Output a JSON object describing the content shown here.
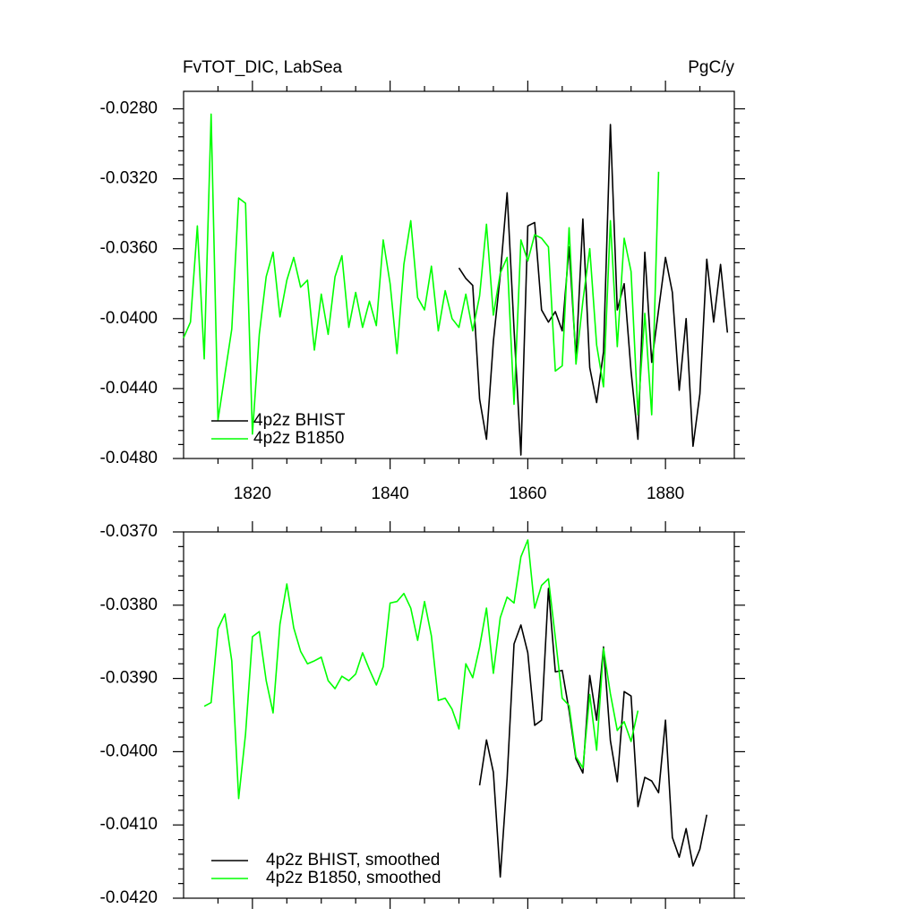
{
  "chart_data": [
    {
      "type": "line",
      "title": "FvTOT_DIC, LabSea",
      "units": "PgC/y",
      "xlim": [
        1810,
        1890
      ],
      "xticks": [
        1820,
        1840,
        1860,
        1880
      ],
      "xtick_labels": true,
      "ylim": [
        -0.048,
        -0.027
      ],
      "yticks": [
        {
          "value": -0.028,
          "label": "-0.0280"
        },
        {
          "value": -0.032,
          "label": "-0.0320"
        },
        {
          "value": -0.036,
          "label": "-0.0360"
        },
        {
          "value": -0.04,
          "label": "-0.0400"
        },
        {
          "value": -0.044,
          "label": "-0.0440"
        },
        {
          "value": -0.048,
          "label": "-0.0480"
        }
      ],
      "legend": "lower left",
      "series": [
        {
          "name": "4p2z BHIST",
          "color": "#000000",
          "x": [
            1850,
            1851,
            1852,
            1853,
            1854,
            1855,
            1856,
            1857,
            1858,
            1859,
            1860,
            1861,
            1862,
            1863,
            1864,
            1865,
            1866,
            1867,
            1868,
            1869,
            1870,
            1871,
            1872,
            1873,
            1874,
            1875,
            1876,
            1877,
            1878,
            1879,
            1880,
            1881,
            1882,
            1883,
            1884,
            1885,
            1886,
            1887,
            1888,
            1889
          ],
          "values": [
            -0.0371,
            -0.0377,
            -0.0381,
            -0.0446,
            -0.0469,
            -0.0413,
            -0.0375,
            -0.0328,
            -0.0406,
            -0.0478,
            -0.0347,
            -0.0345,
            -0.0395,
            -0.0402,
            -0.0396,
            -0.0407,
            -0.0359,
            -0.0423,
            -0.0343,
            -0.0428,
            -0.0448,
            -0.0419,
            -0.0289,
            -0.0395,
            -0.038,
            -0.043,
            -0.0469,
            -0.0362,
            -0.0425,
            -0.0395,
            -0.0365,
            -0.0385,
            -0.0441,
            -0.04,
            -0.0473,
            -0.0443,
            -0.0366,
            -0.0402,
            -0.0369,
            -0.0408
          ]
        },
        {
          "name": "4p2z B1850",
          "color": "#00ff00",
          "x": [
            1810,
            1811,
            1812,
            1813,
            1814,
            1815,
            1816,
            1817,
            1818,
            1819,
            1820,
            1821,
            1822,
            1823,
            1824,
            1825,
            1826,
            1827,
            1828,
            1829,
            1830,
            1831,
            1832,
            1833,
            1834,
            1835,
            1836,
            1837,
            1838,
            1839,
            1840,
            1841,
            1842,
            1843,
            1844,
            1845,
            1846,
            1847,
            1848,
            1849,
            1850,
            1851,
            1852,
            1853,
            1854,
            1855,
            1856,
            1857,
            1858,
            1859,
            1860,
            1861,
            1862,
            1863,
            1864,
            1865,
            1866,
            1867,
            1868,
            1869,
            1870,
            1871,
            1872,
            1873,
            1874,
            1875,
            1876,
            1877,
            1878,
            1879
          ],
          "values": [
            -0.0411,
            -0.0402,
            -0.0347,
            -0.0423,
            -0.0283,
            -0.0458,
            -0.0432,
            -0.0406,
            -0.0331,
            -0.0334,
            -0.0466,
            -0.0409,
            -0.0376,
            -0.0362,
            -0.0399,
            -0.0378,
            -0.0365,
            -0.0382,
            -0.0378,
            -0.0418,
            -0.0386,
            -0.0409,
            -0.0376,
            -0.0364,
            -0.0405,
            -0.0385,
            -0.0405,
            -0.039,
            -0.0404,
            -0.0355,
            -0.038,
            -0.042,
            -0.0369,
            -0.0344,
            -0.0388,
            -0.0395,
            -0.037,
            -0.0407,
            -0.0384,
            -0.04,
            -0.0405,
            -0.0386,
            -0.0407,
            -0.0387,
            -0.0346,
            -0.0398,
            -0.0374,
            -0.0365,
            -0.0449,
            -0.0355,
            -0.0367,
            -0.0352,
            -0.0354,
            -0.0359,
            -0.043,
            -0.0427,
            -0.0348,
            -0.0426,
            -0.039,
            -0.036,
            -0.0415,
            -0.0439,
            -0.0344,
            -0.0416,
            -0.0354,
            -0.0373,
            -0.0455,
            -0.0397,
            -0.0455,
            -0.0316
          ]
        }
      ]
    },
    {
      "type": "line",
      "xlim": [
        1810,
        1890
      ],
      "xticks": [
        1820,
        1840,
        1860,
        1880
      ],
      "xtick_labels": false,
      "ylim": [
        -0.042,
        -0.037
      ],
      "yticks": [
        {
          "value": -0.037,
          "label": "-0.0370"
        },
        {
          "value": -0.038,
          "label": "-0.0380"
        },
        {
          "value": -0.039,
          "label": "-0.0390"
        },
        {
          "value": -0.04,
          "label": "-0.0400"
        },
        {
          "value": -0.041,
          "label": "-0.0410"
        },
        {
          "value": -0.042,
          "label": "-0.0420"
        }
      ],
      "legend": "lower left",
      "series": [
        {
          "name": "4p2z BHIST, smoothed",
          "color": "#000000",
          "x": [
            1853,
            1854,
            1855,
            1856,
            1857,
            1858,
            1859,
            1860,
            1861,
            1862,
            1863,
            1864,
            1865,
            1866,
            1867,
            1868,
            1869,
            1870,
            1871,
            1872,
            1873,
            1874,
            1875,
            1876,
            1877,
            1878,
            1879,
            1880,
            1881,
            1882,
            1883,
            1884,
            1885,
            1886
          ],
          "values": [
            -0.04046,
            -0.03984,
            -0.04028,
            -0.04171,
            -0.04036,
            -0.03853,
            -0.03827,
            -0.03865,
            -0.03964,
            -0.03957,
            -0.03777,
            -0.03891,
            -0.03889,
            -0.03944,
            -0.0401,
            -0.04029,
            -0.03896,
            -0.03957,
            -0.03857,
            -0.03985,
            -0.04041,
            -0.03918,
            -0.03924,
            -0.04075,
            -0.04035,
            -0.0404,
            -0.04056,
            -0.03957,
            -0.04117,
            -0.04144,
            -0.04105,
            -0.04156,
            -0.04133,
            -0.04086
          ]
        },
        {
          "name": "4p2z B1850, smoothed",
          "color": "#00ff00",
          "x": [
            1813,
            1814,
            1815,
            1816,
            1817,
            1818,
            1819,
            1820,
            1821,
            1822,
            1823,
            1824,
            1825,
            1826,
            1827,
            1828,
            1829,
            1830,
            1831,
            1832,
            1833,
            1834,
            1835,
            1836,
            1837,
            1838,
            1839,
            1840,
            1841,
            1842,
            1843,
            1844,
            1845,
            1846,
            1847,
            1848,
            1849,
            1850,
            1851,
            1852,
            1853,
            1854,
            1855,
            1856,
            1857,
            1858,
            1859,
            1860,
            1861,
            1862,
            1863,
            1864,
            1865,
            1866,
            1867,
            1868,
            1869,
            1870,
            1871,
            1872,
            1873,
            1874,
            1875,
            1876
          ],
          "values": [
            -0.03938,
            -0.03933,
            -0.03832,
            -0.03812,
            -0.03876,
            -0.04064,
            -0.03976,
            -0.03843,
            -0.03836,
            -0.03903,
            -0.03947,
            -0.03826,
            -0.03771,
            -0.03831,
            -0.03863,
            -0.0388,
            -0.03876,
            -0.03871,
            -0.03903,
            -0.03914,
            -0.03897,
            -0.03903,
            -0.03894,
            -0.03865,
            -0.03888,
            -0.03909,
            -0.03884,
            -0.03797,
            -0.03795,
            -0.03784,
            -0.03804,
            -0.03848,
            -0.03795,
            -0.03842,
            -0.0393,
            -0.03927,
            -0.03942,
            -0.03969,
            -0.0388,
            -0.03899,
            -0.03857,
            -0.03804,
            -0.03893,
            -0.03817,
            -0.03789,
            -0.03797,
            -0.03734,
            -0.03711,
            -0.03804,
            -0.03773,
            -0.03764,
            -0.03844,
            -0.03927,
            -0.03937,
            -0.04007,
            -0.04022,
            -0.03922,
            -0.03998,
            -0.03859,
            -0.03921,
            -0.03971,
            -0.03959,
            -0.03986,
            -0.03944
          ]
        }
      ]
    }
  ]
}
